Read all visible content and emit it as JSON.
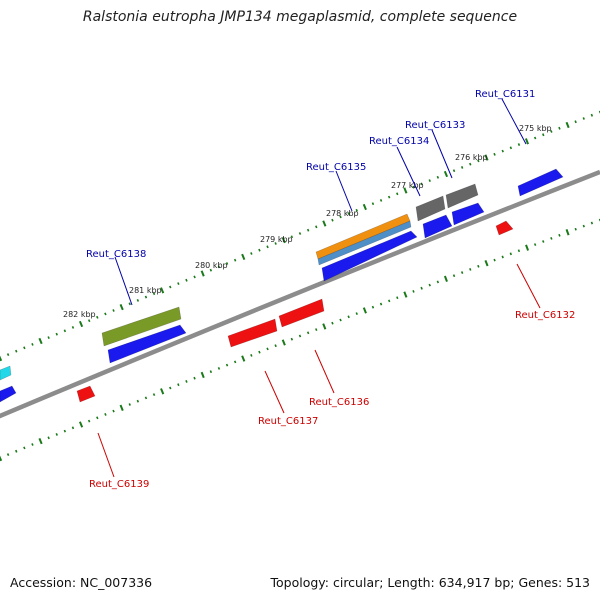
{
  "title": "Ralstonia eutropha JMP134 megaplasmid, complete sequence",
  "footer": {
    "accession": "Accession: NC_007336",
    "topology": "Topology: circular; Length: 634,917 bp; Genes: 513"
  },
  "colors": {
    "backbone": "#8c8c8c",
    "tick": "#1a7a1a",
    "label_forward": "#0000aa",
    "label_reverse": "#cc0000",
    "gene_blue": "#1a1aee",
    "gene_red": "#ee1111",
    "gene_gray": "#666666",
    "gene_orange": "#f09010",
    "gene_steel": "#4f8fc8",
    "gene_olive": "#7a9a28",
    "gene_cyan": "#22d8e8"
  },
  "kbp_labels": [
    "275 kbp",
    "276 kbp",
    "277 kbp",
    "278 kbp",
    "279 kbp",
    "280 kbp",
    "281 kbp",
    "282 kbp"
  ],
  "gene_labels": {
    "forward": [
      "Reut_C6131",
      "Reut_C6133",
      "Reut_C6134",
      "Reut_C6135",
      "Reut_C6138"
    ],
    "reverse": [
      "Reut_C6132",
      "Reut_C6136",
      "Reut_C6137",
      "Reut_C6139"
    ]
  }
}
